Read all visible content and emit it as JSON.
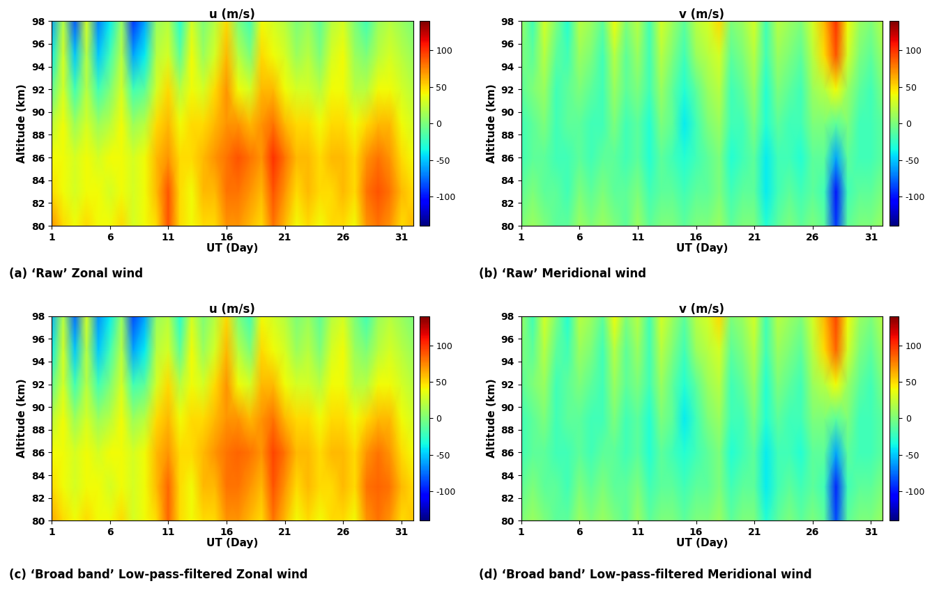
{
  "chart_data": [
    {
      "type": "heatmap",
      "title": "u (m/s)",
      "x_label": "UT (Day)",
      "y_label": "Altitude (km)",
      "annotations": [
        "(a) ‘Raw’ Zonal wind"
      ],
      "x": [
        1,
        2,
        3,
        4,
        5,
        6,
        7,
        8,
        9,
        10,
        11,
        12,
        13,
        14,
        15,
        16,
        17,
        18,
        19,
        20,
        21,
        22,
        23,
        24,
        25,
        26,
        27,
        28,
        29,
        30,
        31,
        32
      ],
      "y": [
        80,
        83,
        86,
        89,
        92,
        95,
        98
      ],
      "values": [
        [
          70,
          50,
          40,
          50,
          40,
          40,
          50,
          30,
          40,
          50,
          90,
          50,
          40,
          50,
          50,
          70,
          70,
          60,
          50,
          80,
          60,
          40,
          50,
          40,
          50,
          50,
          40,
          70,
          80,
          70,
          50,
          60
        ],
        [
          50,
          40,
          30,
          40,
          40,
          30,
          40,
          30,
          40,
          60,
          90,
          50,
          40,
          60,
          60,
          80,
          80,
          70,
          60,
          90,
          70,
          50,
          60,
          50,
          50,
          60,
          50,
          80,
          90,
          80,
          60,
          50
        ],
        [
          40,
          40,
          30,
          40,
          30,
          40,
          40,
          30,
          40,
          60,
          70,
          50,
          50,
          60,
          70,
          80,
          90,
          80,
          70,
          100,
          80,
          60,
          60,
          50,
          60,
          60,
          50,
          70,
          80,
          70,
          50,
          40
        ],
        [
          20,
          40,
          10,
          30,
          10,
          20,
          40,
          10,
          20,
          50,
          60,
          40,
          50,
          50,
          60,
          70,
          70,
          60,
          70,
          80,
          60,
          50,
          50,
          40,
          50,
          50,
          40,
          50,
          60,
          60,
          40,
          30
        ],
        [
          -10,
          30,
          -20,
          20,
          -20,
          0,
          30,
          -20,
          -10,
          30,
          50,
          20,
          40,
          30,
          50,
          70,
          40,
          30,
          60,
          60,
          40,
          30,
          30,
          20,
          40,
          40,
          20,
          20,
          40,
          40,
          30,
          20
        ],
        [
          -40,
          30,
          -50,
          20,
          -50,
          -20,
          20,
          -60,
          -40,
          20,
          30,
          -10,
          40,
          10,
          30,
          60,
          20,
          0,
          50,
          40,
          30,
          10,
          20,
          0,
          30,
          40,
          10,
          0,
          20,
          30,
          20,
          10
        ],
        [
          -60,
          20,
          -80,
          30,
          -70,
          -40,
          10,
          -90,
          -60,
          10,
          20,
          -30,
          30,
          0,
          20,
          50,
          0,
          -20,
          40,
          30,
          20,
          0,
          10,
          -10,
          20,
          30,
          0,
          -20,
          10,
          20,
          10,
          0
        ]
      ],
      "xlim": [
        1,
        32
      ],
      "ylim": [
        80,
        98
      ],
      "xticks": [
        1,
        6,
        11,
        16,
        21,
        26,
        31
      ],
      "yticks": [
        80,
        82,
        84,
        86,
        88,
        90,
        92,
        94,
        96,
        98
      ],
      "color_range": [
        -140,
        140
      ],
      "color_ticks": [
        -100,
        -50,
        0,
        50,
        100
      ]
    },
    {
      "type": "heatmap",
      "title": "v (m/s)",
      "x_label": "UT (Day)",
      "y_label": "Altitude (km)",
      "annotations": [
        "(b) ‘Raw’ Meridional wind"
      ],
      "x": [
        1,
        2,
        3,
        4,
        5,
        6,
        7,
        8,
        9,
        10,
        11,
        12,
        13,
        14,
        15,
        16,
        17,
        18,
        19,
        20,
        21,
        22,
        23,
        24,
        25,
        26,
        27,
        28,
        29,
        30,
        31,
        32
      ],
      "y": [
        80,
        83,
        86,
        89,
        92,
        95,
        98
      ],
      "values": [
        [
          0,
          10,
          0,
          -10,
          -10,
          10,
          0,
          10,
          0,
          -10,
          10,
          -10,
          0,
          0,
          -10,
          0,
          0,
          10,
          -10,
          0,
          0,
          -30,
          -10,
          0,
          -10,
          0,
          -10,
          -90,
          -10,
          0,
          0,
          10
        ],
        [
          -10,
          0,
          -10,
          -10,
          -20,
          0,
          -10,
          0,
          -10,
          -10,
          0,
          -20,
          -10,
          -10,
          -20,
          -10,
          -10,
          0,
          -20,
          -10,
          -10,
          -40,
          -20,
          -10,
          -20,
          -10,
          -20,
          -100,
          -20,
          -10,
          -10,
          0
        ],
        [
          -20,
          -10,
          -10,
          -20,
          -20,
          -10,
          -20,
          -10,
          -10,
          -20,
          -10,
          -30,
          -10,
          -20,
          -30,
          -20,
          -10,
          0,
          -30,
          -20,
          -10,
          -40,
          -20,
          -20,
          -30,
          -10,
          -10,
          -60,
          -10,
          -20,
          -20,
          -10
        ],
        [
          -20,
          -10,
          0,
          -20,
          -10,
          -10,
          -20,
          -20,
          0,
          -20,
          -10,
          -30,
          0,
          -10,
          -40,
          -20,
          0,
          10,
          -20,
          -20,
          0,
          -30,
          -10,
          -20,
          -20,
          0,
          0,
          -10,
          0,
          -20,
          -20,
          -10
        ],
        [
          -10,
          0,
          10,
          -20,
          -10,
          0,
          -10,
          -20,
          10,
          -10,
          0,
          -20,
          10,
          -10,
          -30,
          -10,
          10,
          20,
          -20,
          -10,
          10,
          -30,
          0,
          -10,
          -20,
          10,
          20,
          40,
          10,
          -10,
          -20,
          0
        ],
        [
          0,
          -10,
          20,
          -10,
          -20,
          10,
          0,
          -20,
          20,
          -10,
          10,
          -20,
          20,
          0,
          -20,
          10,
          20,
          30,
          -10,
          0,
          20,
          -20,
          10,
          0,
          -10,
          20,
          50,
          90,
          30,
          0,
          -10,
          10
        ],
        [
          10,
          -20,
          30,
          0,
          -30,
          20,
          10,
          -10,
          40,
          0,
          20,
          -20,
          30,
          10,
          -10,
          20,
          30,
          50,
          0,
          10,
          30,
          -20,
          20,
          10,
          0,
          30,
          60,
          100,
          40,
          10,
          0,
          20
        ]
      ],
      "xlim": [
        1,
        32
      ],
      "ylim": [
        80,
        98
      ],
      "xticks": [
        1,
        6,
        11,
        16,
        21,
        26,
        31
      ],
      "yticks": [
        80,
        82,
        84,
        86,
        88,
        90,
        92,
        94,
        96,
        98
      ],
      "color_range": [
        -140,
        140
      ],
      "color_ticks": [
        -100,
        -50,
        0,
        50,
        100
      ]
    },
    {
      "type": "heatmap",
      "title": "u (m/s)",
      "x_label": "UT (Day)",
      "y_label": "Altitude (km)",
      "annotations": [
        "(c) ‘Broad band’ Low-pass-filtered Zonal wind"
      ],
      "x": [
        1,
        2,
        3,
        4,
        5,
        6,
        7,
        8,
        9,
        10,
        11,
        12,
        13,
        14,
        15,
        16,
        17,
        18,
        19,
        20,
        21,
        22,
        23,
        24,
        25,
        26,
        27,
        28,
        29,
        30,
        31,
        32
      ],
      "y": [
        80,
        83,
        86,
        89,
        92,
        95,
        98
      ],
      "values": [
        [
          65,
          50,
          40,
          50,
          40,
          40,
          50,
          30,
          40,
          50,
          85,
          50,
          40,
          50,
          50,
          70,
          70,
          60,
          50,
          80,
          60,
          40,
          50,
          40,
          50,
          50,
          40,
          70,
          80,
          70,
          50,
          55
        ],
        [
          50,
          40,
          30,
          40,
          40,
          30,
          40,
          30,
          40,
          60,
          85,
          50,
          40,
          60,
          60,
          80,
          80,
          70,
          60,
          90,
          70,
          50,
          60,
          50,
          50,
          60,
          50,
          80,
          85,
          80,
          60,
          50
        ],
        [
          40,
          40,
          30,
          40,
          30,
          40,
          40,
          30,
          40,
          60,
          70,
          50,
          50,
          60,
          70,
          80,
          85,
          80,
          70,
          95,
          80,
          60,
          60,
          50,
          60,
          60,
          50,
          70,
          80,
          70,
          50,
          40
        ],
        [
          20,
          40,
          10,
          30,
          10,
          20,
          40,
          10,
          20,
          50,
          60,
          40,
          50,
          50,
          60,
          70,
          70,
          60,
          70,
          80,
          60,
          50,
          50,
          40,
          50,
          50,
          40,
          50,
          60,
          60,
          40,
          30
        ],
        [
          -10,
          30,
          -20,
          20,
          -20,
          0,
          30,
          -20,
          -10,
          30,
          50,
          20,
          40,
          30,
          50,
          70,
          40,
          30,
          60,
          60,
          40,
          30,
          30,
          20,
          40,
          40,
          20,
          20,
          40,
          40,
          30,
          20
        ],
        [
          -40,
          30,
          -50,
          20,
          -50,
          -20,
          20,
          -60,
          -40,
          20,
          30,
          -10,
          40,
          10,
          30,
          60,
          20,
          0,
          50,
          40,
          30,
          10,
          20,
          0,
          30,
          40,
          10,
          0,
          20,
          30,
          20,
          10
        ],
        [
          -55,
          20,
          -75,
          30,
          -65,
          -40,
          10,
          -85,
          -60,
          10,
          20,
          -30,
          30,
          0,
          20,
          50,
          0,
          -20,
          40,
          30,
          20,
          0,
          10,
          -10,
          20,
          30,
          0,
          -20,
          10,
          20,
          10,
          0
        ]
      ],
      "xlim": [
        1,
        32
      ],
      "ylim": [
        80,
        98
      ],
      "xticks": [
        1,
        6,
        11,
        16,
        21,
        26,
        31
      ],
      "yticks": [
        80,
        82,
        84,
        86,
        88,
        90,
        92,
        94,
        96,
        98
      ],
      "color_range": [
        -140,
        140
      ],
      "color_ticks": [
        -100,
        -50,
        0,
        50,
        100
      ]
    },
    {
      "type": "heatmap",
      "title": "v (m/s)",
      "x_label": "UT (Day)",
      "y_label": "Altitude (km)",
      "annotations": [
        "(d) ‘Broad band’ Low-pass-filtered Meridional wind"
      ],
      "x": [
        1,
        2,
        3,
        4,
        5,
        6,
        7,
        8,
        9,
        10,
        11,
        12,
        13,
        14,
        15,
        16,
        17,
        18,
        19,
        20,
        21,
        22,
        23,
        24,
        25,
        26,
        27,
        28,
        29,
        30,
        31,
        32
      ],
      "y": [
        80,
        83,
        86,
        89,
        92,
        95,
        98
      ],
      "values": [
        [
          0,
          10,
          0,
          -10,
          -10,
          10,
          0,
          10,
          0,
          -10,
          10,
          -10,
          0,
          0,
          -10,
          0,
          0,
          10,
          -10,
          0,
          0,
          -30,
          -10,
          0,
          -10,
          0,
          -10,
          -85,
          -10,
          0,
          0,
          10
        ],
        [
          -10,
          0,
          -10,
          -10,
          -20,
          0,
          -10,
          0,
          -10,
          -10,
          0,
          -20,
          -10,
          -10,
          -20,
          -10,
          -10,
          0,
          -20,
          -10,
          -10,
          -40,
          -20,
          -10,
          -20,
          -10,
          -20,
          -95,
          -20,
          -10,
          -10,
          0
        ],
        [
          -20,
          -10,
          -10,
          -20,
          -20,
          -10,
          -20,
          -10,
          -10,
          -20,
          -10,
          -30,
          -10,
          -20,
          -30,
          -20,
          -10,
          0,
          -30,
          -20,
          -10,
          -40,
          -20,
          -20,
          -30,
          -10,
          -10,
          -60,
          -10,
          -20,
          -20,
          -10
        ],
        [
          -20,
          -10,
          0,
          -20,
          -10,
          -10,
          -20,
          -20,
          0,
          -20,
          -10,
          -30,
          0,
          -10,
          -40,
          -20,
          0,
          10,
          -20,
          -20,
          0,
          -30,
          -10,
          -20,
          -20,
          0,
          0,
          -10,
          0,
          -20,
          -20,
          -10
        ],
        [
          -10,
          0,
          10,
          -20,
          -10,
          0,
          -10,
          -20,
          10,
          -10,
          0,
          -20,
          10,
          -10,
          -30,
          -10,
          10,
          20,
          -20,
          -10,
          10,
          -30,
          0,
          -10,
          -20,
          10,
          20,
          40,
          10,
          -10,
          -20,
          0
        ],
        [
          0,
          -10,
          20,
          -10,
          -20,
          10,
          0,
          -20,
          20,
          -10,
          10,
          -20,
          20,
          0,
          -20,
          10,
          20,
          30,
          -10,
          0,
          20,
          -20,
          10,
          0,
          -10,
          20,
          50,
          85,
          30,
          0,
          -10,
          10
        ],
        [
          10,
          -20,
          30,
          0,
          -30,
          20,
          10,
          -10,
          40,
          0,
          20,
          -20,
          30,
          10,
          -10,
          20,
          30,
          50,
          0,
          10,
          30,
          -20,
          20,
          10,
          0,
          30,
          60,
          95,
          40,
          10,
          0,
          20
        ]
      ],
      "xlim": [
        1,
        32
      ],
      "ylim": [
        80,
        98
      ],
      "xticks": [
        1,
        6,
        11,
        16,
        21,
        26,
        31
      ],
      "yticks": [
        80,
        82,
        84,
        86,
        88,
        90,
        92,
        94,
        96,
        98
      ],
      "color_range": [
        -140,
        140
      ],
      "color_ticks": [
        -100,
        -50,
        0,
        50,
        100
      ]
    }
  ]
}
